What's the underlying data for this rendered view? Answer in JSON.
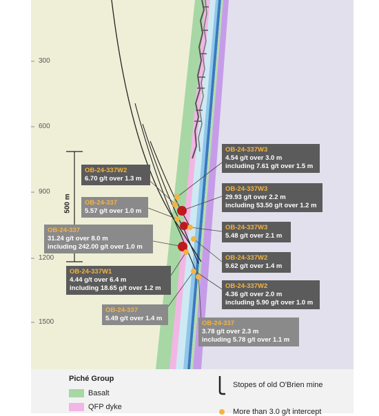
{
  "depth_axis": {
    "ticks": [
      {
        "label": "300",
        "depth": 300
      },
      {
        "label": "600",
        "depth": 600
      },
      {
        "label": "900",
        "depth": 900
      },
      {
        "label": "1200",
        "depth": 1200
      },
      {
        "label": "1500",
        "depth": 1500
      }
    ]
  },
  "scale_bar": {
    "label": "500 m"
  },
  "colors": {
    "basalt": "#a7d7a4",
    "qfp_dyke": "#f2b6e4",
    "beige": "#efefd8",
    "purple_area": "#e2e0ec",
    "blue_band": "#8fc7e8",
    "dark_blue": "#3a78c0",
    "violet": "#c69ce8",
    "callout_dark": "#5b5b5b",
    "callout_mid": "#8a8a8a",
    "hole_label": "#f5b341",
    "intercept_large": "#c0191c",
    "intercept_small": "#f5b341"
  },
  "callouts": [
    {
      "hole": "OB-24-337W3",
      "lines": [
        "4.54 g/t over 3.0 m",
        "including 7.61 g/t over 1.5 m"
      ]
    },
    {
      "hole": "OB-24-337W2",
      "lines": [
        "6.70 g/t over 1.3 m"
      ]
    },
    {
      "hole": "OB-24-337W3",
      "lines": [
        "29.93 g/t over 2.2 m",
        "including 53.50 g/t over 1.2 m"
      ]
    },
    {
      "hole": "OB-24-337",
      "lines": [
        "5.57 g/t over 1.0 m"
      ]
    },
    {
      "hole": "OB-24-337W3",
      "lines": [
        "5.48 g/t over 2.1 m"
      ]
    },
    {
      "hole": "OB-24-337",
      "lines": [
        "31.24 g/t over 8.0 m",
        "including 242.00 g/t over 1.0 m"
      ]
    },
    {
      "hole": "OB-24-337W2",
      "lines": [
        "9.62 g/t over 1.4 m"
      ]
    },
    {
      "hole": "OB-24-337W1",
      "lines": [
        "4.44 g/t over 6.4 m",
        "including 18.65 g/t over 1.2 m"
      ]
    },
    {
      "hole": "OB-24-337W2",
      "lines": [
        "4.36 g/t over 2.0 m",
        "including 5.90 g/t over 1.0 m"
      ]
    },
    {
      "hole": "OB-24-337",
      "lines": [
        "5.49 g/t over 1.4 m"
      ]
    },
    {
      "hole": "OB-24-337",
      "lines": [
        "3.78 g/t over 2.3 m",
        "including 5.78 g/t over 1.1 m"
      ]
    }
  ],
  "legend": {
    "group_title": "Piché Group",
    "items": [
      {
        "label": "Basalt",
        "color": "#a7d7a4"
      },
      {
        "label": "QFP dyke",
        "color": "#f2b6e4"
      }
    ],
    "stopes_label": "Stopes of old O'Brien mine",
    "intercept_label": "More than 3.0 g/t intercept"
  }
}
